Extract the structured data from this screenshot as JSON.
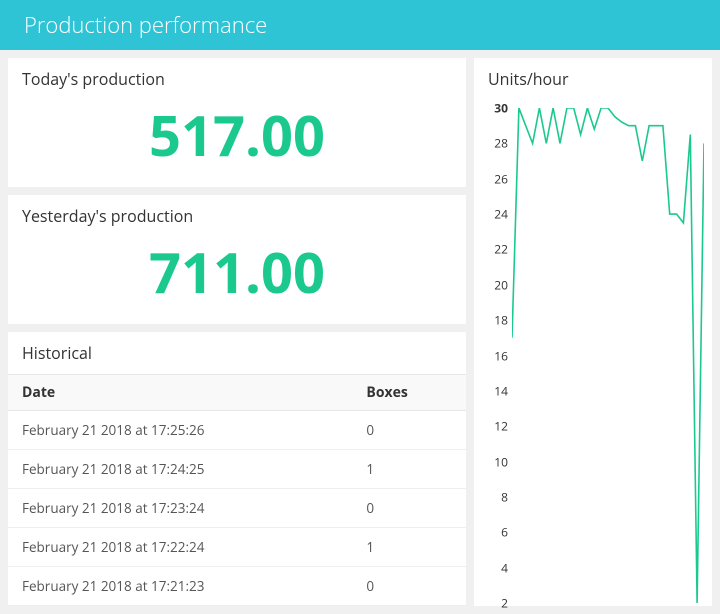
{
  "header": {
    "title": "Production performance"
  },
  "today": {
    "label": "Today's production",
    "value": "517.00"
  },
  "yesterday": {
    "label": "Yesterday's production",
    "value": "711.00"
  },
  "historical": {
    "title": "Historical",
    "columns": [
      "Date",
      "Boxes"
    ],
    "rows": [
      [
        "February 21 2018 at 17:25:26",
        "0"
      ],
      [
        "February 21 2018 at 17:24:25",
        "1"
      ],
      [
        "February 21 2018 at 17:23:24",
        "0"
      ],
      [
        "February 21 2018 at 17:22:24",
        "1"
      ],
      [
        "February 21 2018 at 17:21:23",
        "0"
      ]
    ]
  },
  "chart": {
    "title": "Units/hour",
    "type": "line",
    "line_color": "#1bc98e",
    "line_width": 1.6,
    "background_color": "#ffffff",
    "ylim": [
      2,
      30
    ],
    "yticks": [
      30,
      28,
      26,
      24,
      22,
      20,
      18,
      16,
      14,
      12,
      10,
      8,
      6,
      4,
      2
    ],
    "ytick_bold": [
      30
    ],
    "label_fontsize": 12,
    "values": [
      17,
      30,
      29,
      28,
      30,
      28,
      30,
      28,
      30,
      30,
      28.5,
      30,
      28.8,
      30,
      30,
      29.5,
      29.2,
      29,
      29,
      27,
      29,
      29,
      29,
      24,
      24,
      23.5,
      28.5,
      2,
      28
    ]
  },
  "colors": {
    "header_bg": "#2ec4d6",
    "accent": "#1bc98e",
    "page_bg": "#f0f0f0",
    "card_bg": "#ffffff",
    "text": "#333333",
    "text_muted": "#555555",
    "border": "#e6e6e6"
  }
}
